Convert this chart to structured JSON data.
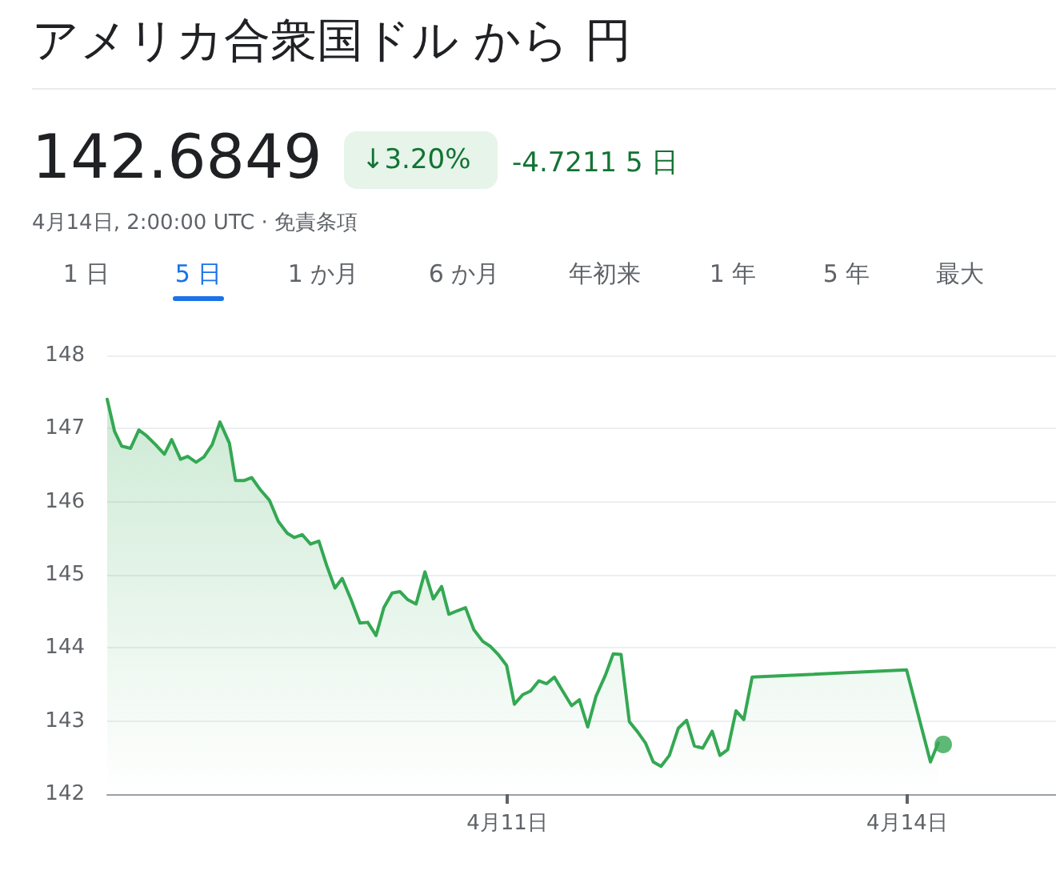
{
  "chart_data": {
    "type": "area",
    "title": "アメリカ合衆国ドル から 円",
    "subtitle": "4月14日, 2:00:00 UTC · 免責条項",
    "annotations": [
      "142.6849",
      "↓3.20%",
      "-4.7211 5 日",
      "1 日",
      "5 日",
      "1 か月",
      "6 か月",
      "年初来",
      "1 年",
      "5 年",
      "最大"
    ],
    "xlim": [
      "--04-08T00:00",
      "--04-15T02:48"
    ],
    "xticks": [
      {
        "value": "--04-11",
        "label": "4月11日"
      },
      {
        "value": "--04-14",
        "label": "4月14日"
      }
    ],
    "ylim": [
      142,
      148
    ],
    "yticks": [
      142,
      143,
      144,
      145,
      146,
      147,
      148
    ],
    "grid": "y",
    "marker": "none",
    "line_style": "solid",
    "series": [
      {
        "color": "#34a853",
        "x": [
          "--04-08T00:00",
          "--04-08T01:20",
          "--04-08T02:36",
          "--04-08T04:12",
          "--04-08T05:42",
          "--04-08T07:06",
          "--04-08T08:42",
          "--04-08T10:18",
          "--04-08T11:36",
          "--04-08T13:12",
          "--04-08T14:30",
          "--04-08T16:00",
          "--04-08T17:24",
          "--04-08T18:54",
          "--04-08T20:18",
          "--04-08T22:00",
          "--04-08T23:06",
          "--04-09T00:42",
          "--04-09T02:00",
          "--04-09T03:36",
          "--04-09T05:12",
          "--04-09T06:48",
          "--04-09T08:24",
          "--04-09T09:42",
          "--04-09T11:06",
          "--04-09T12:36",
          "--04-09T14:06",
          "--04-09T15:30",
          "--04-09T17:00",
          "--04-09T18:18",
          "--04-09T19:54",
          "--04-09T21:30",
          "--04-09T22:54",
          "--04-10T00:24",
          "--04-10T01:48",
          "--04-10T03:18",
          "--04-10T04:42",
          "--04-10T06:06",
          "--04-10T07:36",
          "--04-10T09:12",
          "--04-10T10:42",
          "--04-10T12:12",
          "--04-10T13:30",
          "--04-10T15:06",
          "--04-10T16:30",
          "--04-10T18:00",
          "--04-10T19:36",
          "--04-10T21:00",
          "--04-10T22:30",
          "--04-10T23:54",
          "--04-11T01:18",
          "--04-11T02:48",
          "--04-11T04:12",
          "--04-11T05:42",
          "--04-11T07:06",
          "--04-11T08:30",
          "--04-11T10:00",
          "--04-11T11:36",
          "--04-11T13:00",
          "--04-11T14:30",
          "--04-11T16:00",
          "--04-11T17:42",
          "--04-11T19:06",
          "--04-11T20:30",
          "--04-11T22:00",
          "--04-11T23:30",
          "--04-12T00:54",
          "--04-12T02:18",
          "--04-12T03:42",
          "--04-12T05:12",
          "--04-12T06:48",
          "--04-12T08:18",
          "--04-12T09:42",
          "--04-12T11:12",
          "--04-12T12:54",
          "--04-12T14:18",
          "--04-12T15:42",
          "--04-12T17:12",
          "--04-12T18:36",
          "--04-12T20:06",
          "--04-13T23:54",
          "--04-14T04:12",
          "--04-14T05:36"
        ],
        "values": [
          147.4,
          146.96,
          146.76,
          146.73,
          146.98,
          146.9,
          146.78,
          146.65,
          146.85,
          146.58,
          146.62,
          146.54,
          146.61,
          146.78,
          147.09,
          146.8,
          146.29,
          146.29,
          146.33,
          146.16,
          146.02,
          145.73,
          145.57,
          145.51,
          145.55,
          145.42,
          145.46,
          145.13,
          144.82,
          144.95,
          144.66,
          144.34,
          144.35,
          144.17,
          144.55,
          144.75,
          144.77,
          144.66,
          144.6,
          145.04,
          144.67,
          144.84,
          144.46,
          144.51,
          144.55,
          144.25,
          144.09,
          144.02,
          143.9,
          143.76,
          143.23,
          143.36,
          143.41,
          143.55,
          143.51,
          143.6,
          143.41,
          143.21,
          143.29,
          142.92,
          143.34,
          143.63,
          143.92,
          143.91,
          142.99,
          142.85,
          142.7,
          142.44,
          142.38,
          142.53,
          142.9,
          143.01,
          142.66,
          142.63,
          142.86,
          142.53,
          142.61,
          143.14,
          143.02,
          143.6,
          143.7,
          142.44,
          142.7
        ]
      },
      {
        "type": "scatter",
        "marker": "circle",
        "color": "#34a853",
        "x": [
          "--04-14T06:30"
        ],
        "values": [
          142.68
        ]
      }
    ]
  }
}
